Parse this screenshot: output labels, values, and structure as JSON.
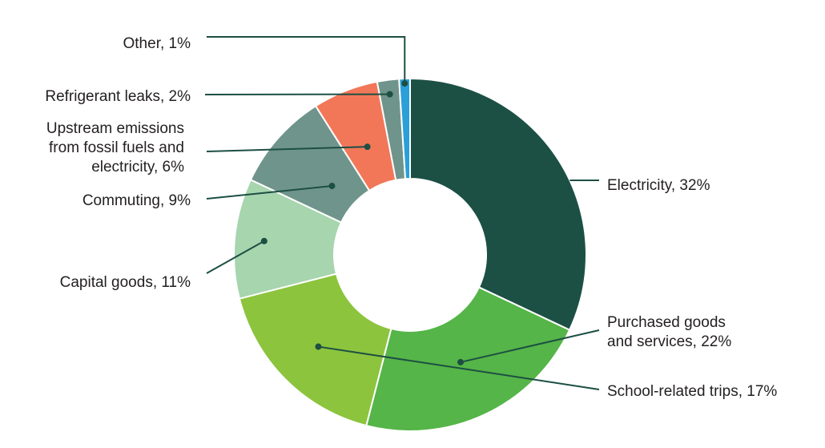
{
  "colors": {
    "electricity": "#1c5045",
    "purchased": "#55b548",
    "school_trips": "#8cc43d",
    "capital": "#a6d5ae",
    "commuting": "#6f948b",
    "upstream": "#f27759",
    "refrigerant": "#6f948b",
    "other": "#2a9fd8",
    "leader": "#1d4f43"
  },
  "chart_data": {
    "type": "pie",
    "variant": "donut",
    "title": "",
    "slices": [
      {
        "label": "Electricity, 32%",
        "value": 32,
        "color_key": "electricity"
      },
      {
        "label": "Purchased goods and services, 22%",
        "lines": [
          "Purchased goods",
          "and services, 22%"
        ],
        "value": 22,
        "color_key": "purchased"
      },
      {
        "label": "School-related trips, 17%",
        "value": 17,
        "color_key": "school_trips"
      },
      {
        "label": "Capital goods, 11%",
        "value": 11,
        "color_key": "capital"
      },
      {
        "label": "Commuting, 9%",
        "value": 9,
        "color_key": "commuting"
      },
      {
        "label": "Upstream emissions from fossil fuels and electricity, 6%",
        "lines": [
          "Upstream emissions",
          "from fossil fuels and",
          "electricity, 6%"
        ],
        "value": 6,
        "color_key": "upstream"
      },
      {
        "label": "Refrigerant leaks, 2%",
        "value": 2,
        "color_key": "refrigerant"
      },
      {
        "label": "Other, 1%",
        "value": 1,
        "color_key": "other"
      }
    ]
  }
}
